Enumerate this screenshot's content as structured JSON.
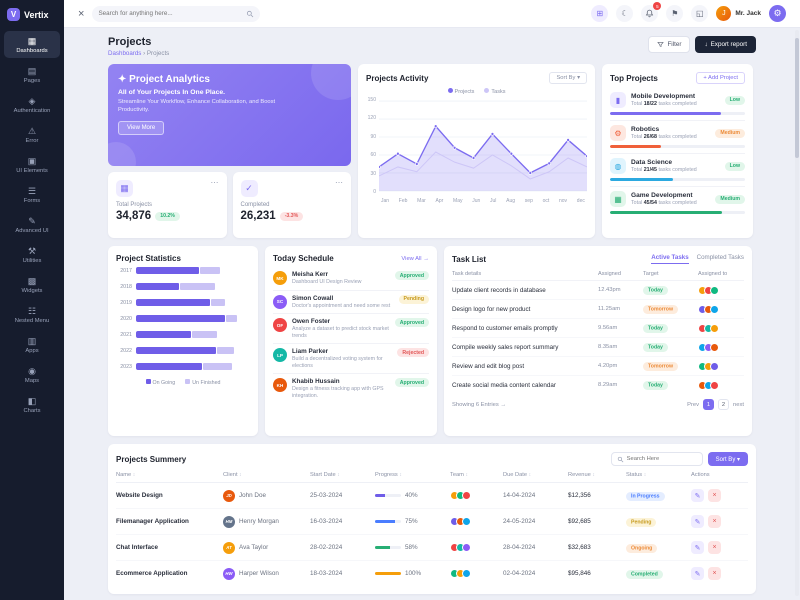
{
  "brand": {
    "name": "Vertix",
    "logo_letter": "V",
    "accent": "#7c6cf0"
  },
  "topbar": {
    "close_glyph": "×",
    "search_placeholder": "Search for anything here...",
    "apps_glyph": "⊞",
    "moon_glyph": "☾",
    "notification_count": "5",
    "flag_glyph": "⚑",
    "fullscreen_glyph": "◱",
    "user_name": "Mr. Jack",
    "gear_glyph": "⚙"
  },
  "sidebar": {
    "items": [
      {
        "label": "Dashboards",
        "icon": "▦",
        "active": true
      },
      {
        "label": "Pages",
        "icon": "▤"
      },
      {
        "label": "Authentication",
        "icon": "◈"
      },
      {
        "label": "Error",
        "icon": "⚠"
      },
      {
        "label": "UI Elements",
        "icon": "▣"
      },
      {
        "label": "Forms",
        "icon": "☰"
      },
      {
        "label": "Advanced UI",
        "icon": "✎"
      },
      {
        "label": "Utilities",
        "icon": "⚒"
      },
      {
        "label": "Widgets",
        "icon": "▩"
      },
      {
        "label": "Nested Menu",
        "icon": "☷"
      },
      {
        "label": "Apps",
        "icon": "▥"
      },
      {
        "label": "Maps",
        "icon": "◉"
      },
      {
        "label": "Charts",
        "icon": "◧"
      }
    ]
  },
  "page": {
    "title": "Projects",
    "breadcrumb_home": "Dashboards",
    "breadcrumb_sep": "›",
    "breadcrumb_current": "Projects",
    "filter_label": "Filter",
    "export_label": "Export report",
    "export_glyph": "↓"
  },
  "banner": {
    "sparkle": "✦",
    "title": "Project Analytics",
    "subtitle": "All of Your Projects In One Place.",
    "description": "Streamline Your Workflow, Enhance Collaboration, and Boost Productivity.",
    "cta": "View More"
  },
  "stats": [
    {
      "icon": "▦",
      "label": "Total Projects",
      "value": "34,876",
      "delta": "10.2%",
      "tone": "green",
      "menu": "⋯"
    },
    {
      "icon": "✓",
      "label": "Completed",
      "value": "26,231",
      "delta": "-3.3%",
      "tone": "red",
      "menu": "⋯"
    }
  ],
  "activity": {
    "sort_label": "Sort By",
    "sort_caret": "▾"
  },
  "top_projects": {
    "title": "Top Projects",
    "add_label": "+ Add Project",
    "total_label": "Total",
    "suffix": "tasks completed",
    "items": [
      {
        "name": "Mobile Development",
        "fraction": "18/22",
        "percent": 82,
        "bar_tone": "purple",
        "icon": "▮",
        "icon_tone": "purple",
        "priority": "Low",
        "priority_tone": "green"
      },
      {
        "name": "Robotics",
        "fraction": "26/68",
        "percent": 38,
        "bar_tone": "red",
        "icon": "⚙",
        "icon_tone": "red",
        "priority": "Medium",
        "priority_tone": "orange"
      },
      {
        "name": "Data Science",
        "fraction": "21/45",
        "percent": 47,
        "bar_tone": "cyan",
        "icon": "◍",
        "icon_tone": "cyan",
        "priority": "Low",
        "priority_tone": "green"
      },
      {
        "name": "Game Development",
        "fraction": "45/54",
        "percent": 83,
        "bar_tone": "green",
        "icon": "▦",
        "icon_tone": "green",
        "priority": "Medium",
        "priority_tone": "green"
      }
    ]
  },
  "schedule": {
    "title": "Today Schedule",
    "view_all": "View All →",
    "items": [
      {
        "initials": "MK",
        "color": "#f59e0b",
        "name": "Meisha Kerr",
        "task": "Dashboard UI Design Review",
        "status": "Approved",
        "tone": "green"
      },
      {
        "initials": "SC",
        "color": "#8b5cf6",
        "name": "Simon Cowall",
        "task": "Doctor's appointment and need some rest",
        "status": "Pending",
        "tone": "yellow"
      },
      {
        "initials": "OF",
        "color": "#ef4444",
        "name": "Owen Foster",
        "task": "Analyze a dataset to predict stock market trends",
        "status": "Approved",
        "tone": "green"
      },
      {
        "initials": "LP",
        "color": "#14b8a6",
        "name": "Liam Parker",
        "task": "Build a decentralized voting system for elections",
        "status": "Rejected",
        "tone": "red"
      },
      {
        "initials": "KH",
        "color": "#e8590c",
        "name": "Khabib Hussain",
        "task": "Design a fitness tracking app with GPS integration.",
        "status": "Approved",
        "tone": "green"
      }
    ]
  },
  "tasks": {
    "title": "Task List",
    "tabs": [
      {
        "label": "Active Tasks"
      },
      {
        "label": "Completed Tasks"
      }
    ],
    "columns": [
      "Task details",
      "Assigned",
      "Target",
      "Assigned to"
    ],
    "rows": [
      {
        "task": "Update client records in database",
        "time": "12.43pm",
        "target": "Today",
        "tone": "green",
        "avatars": [
          "#f59e0b",
          "#ef4444",
          "#10b981"
        ]
      },
      {
        "task": "Design logo for new product",
        "time": "11.25am",
        "target": "Tomorrow",
        "tone": "orange",
        "avatars": [
          "#6f5de8",
          "#e8590c",
          "#0ea5e9"
        ]
      },
      {
        "task": "Respond to customer emails promptly",
        "time": "9.56am",
        "target": "Today",
        "tone": "green",
        "avatars": [
          "#ef4444",
          "#14b8a6",
          "#f59e0b"
        ]
      },
      {
        "task": "Compile weekly sales report summary",
        "time": "8.35am",
        "target": "Today",
        "tone": "green",
        "avatars": [
          "#0ea5e9",
          "#8b5cf6",
          "#e8590c"
        ]
      },
      {
        "task": "Review and edit blog post",
        "time": "4.20pm",
        "target": "Tomorrow",
        "tone": "orange",
        "avatars": [
          "#10b981",
          "#f59e0b",
          "#6f5de8"
        ]
      },
      {
        "task": "Create social media content calendar",
        "time": "8.29am",
        "target": "Today",
        "tone": "green",
        "avatars": [
          "#e8590c",
          "#0ea5e9",
          "#ef4444"
        ]
      }
    ],
    "footer": "Showing 6 Entries →",
    "pager": {
      "prev": "Prev",
      "page1": "1",
      "page2": "2",
      "next": "next"
    }
  },
  "summary": {
    "title": "Projects Summery",
    "search_placeholder": "Search Here",
    "sort_label": "Sort By ▾",
    "sort_glyph": "↕",
    "edit_glyph": "✎",
    "delete_glyph": "×",
    "columns": [
      "Name",
      "Client",
      "Start Date",
      "Progress",
      "Team",
      "Due Date",
      "Revenue",
      "Status",
      "Actions"
    ],
    "rows": [
      {
        "name": "Website Design",
        "client": "John Doe",
        "initials": "JD",
        "color": "#e8590c",
        "start": "25-03-2024",
        "percent": 40,
        "percent_label": "40%",
        "bar_tone": "purple",
        "team": [
          "#f59e0b",
          "#10b981",
          "#ef4444"
        ],
        "due": "14-04-2024",
        "revenue": "$12,356",
        "status": "In Progress",
        "status_tone": "blue"
      },
      {
        "name": "Filemanager Application",
        "client": "Henry Morgan",
        "initials": "HM",
        "color": "#64748b",
        "start": "16-03-2024",
        "percent": 75,
        "percent_label": "75%",
        "bar_tone": "blue",
        "team": [
          "#6f5de8",
          "#e8590c",
          "#0ea5e9"
        ],
        "due": "24-05-2024",
        "revenue": "$92,685",
        "status": "Pending",
        "status_tone": "yellow"
      },
      {
        "name": "Chat Interface",
        "client": "Ava Taylor",
        "initials": "AT",
        "color": "#f59e0b",
        "start": "28-02-2024",
        "percent": 58,
        "percent_label": "58%",
        "bar_tone": "green",
        "team": [
          "#ef4444",
          "#14b8a6",
          "#8b5cf6"
        ],
        "due": "28-04-2024",
        "revenue": "$32,683",
        "status": "Ongoing",
        "status_tone": "orange"
      },
      {
        "name": "Ecommerce Application",
        "client": "Harper Wilson",
        "initials": "HW",
        "color": "#8b5cf6",
        "start": "18-03-2024",
        "percent": 100,
        "percent_label": "100%",
        "bar_tone": "orange",
        "team": [
          "#10b981",
          "#f59e0b",
          "#0ea5e9"
        ],
        "due": "02-04-2024",
        "revenue": "$95,846",
        "status": "Completed",
        "status_tone": "green"
      }
    ]
  },
  "chart_data": [
    {
      "type": "area",
      "title": "Projects Activity",
      "x": [
        "Jan",
        "Feb",
        "Mar",
        "Apr",
        "May",
        "Jun",
        "Jul",
        "Aug",
        "sep",
        "oct",
        "nov",
        "dec"
      ],
      "yticks": [
        0,
        30,
        60,
        90,
        120,
        150
      ],
      "ylim": [
        0,
        150
      ],
      "legend_position": "top",
      "grid": true,
      "series": [
        {
          "name": "Projects",
          "color": "#7c6cf0",
          "values": [
            40,
            62,
            45,
            108,
            72,
            55,
            95,
            62,
            30,
            46,
            85,
            58
          ]
        },
        {
          "name": "Tasks",
          "color": "#cdc6f7",
          "values": [
            25,
            40,
            32,
            65,
            48,
            38,
            60,
            42,
            20,
            32,
            55,
            40
          ]
        }
      ]
    },
    {
      "type": "bar",
      "orientation": "horizontal",
      "stacked": true,
      "title": "Project Statistics",
      "categories": [
        "2017",
        "2018",
        "2019",
        "2020",
        "2021",
        "2022",
        "2023"
      ],
      "xlim": [
        0,
        100
      ],
      "series": [
        {
          "name": "On Going",
          "color": "#6f5de8",
          "values": [
            55,
            38,
            65,
            78,
            48,
            70,
            58
          ]
        },
        {
          "name": "Un Finished",
          "color": "#c9c2f5",
          "values": [
            18,
            30,
            12,
            10,
            22,
            15,
            25
          ]
        }
      ]
    }
  ]
}
